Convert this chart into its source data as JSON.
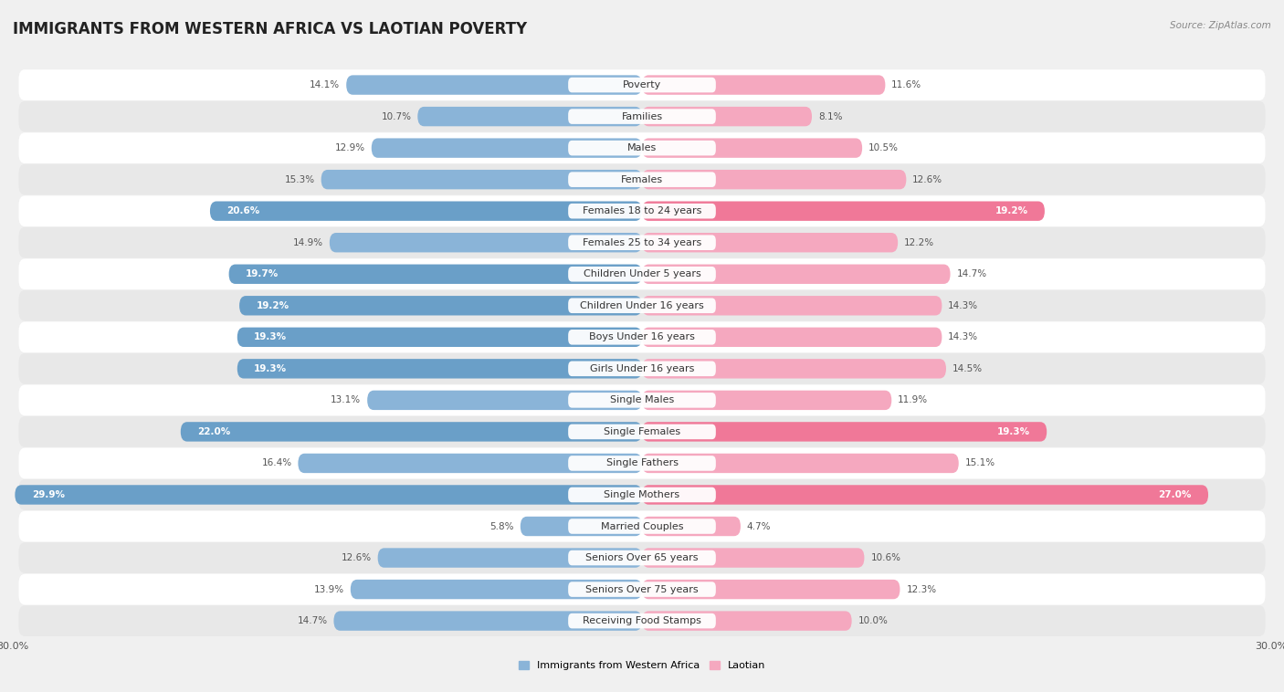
{
  "title": "IMMIGRANTS FROM WESTERN AFRICA VS LAOTIAN POVERTY",
  "source": "Source: ZipAtlas.com",
  "categories": [
    "Poverty",
    "Families",
    "Males",
    "Females",
    "Females 18 to 24 years",
    "Females 25 to 34 years",
    "Children Under 5 years",
    "Children Under 16 years",
    "Boys Under 16 years",
    "Girls Under 16 years",
    "Single Males",
    "Single Females",
    "Single Fathers",
    "Single Mothers",
    "Married Couples",
    "Seniors Over 65 years",
    "Seniors Over 75 years",
    "Receiving Food Stamps"
  ],
  "left_values": [
    14.1,
    10.7,
    12.9,
    15.3,
    20.6,
    14.9,
    19.7,
    19.2,
    19.3,
    19.3,
    13.1,
    22.0,
    16.4,
    29.9,
    5.8,
    12.6,
    13.9,
    14.7
  ],
  "right_values": [
    11.6,
    8.1,
    10.5,
    12.6,
    19.2,
    12.2,
    14.7,
    14.3,
    14.3,
    14.5,
    11.9,
    19.3,
    15.1,
    27.0,
    4.7,
    10.6,
    12.3,
    10.0
  ],
  "left_color_normal": "#8ab4d8",
  "left_color_dark": "#6a9fc8",
  "right_color_normal": "#f5a8bf",
  "right_color_dark": "#f07898",
  "xlim": 30.0,
  "bg_color": "#f0f0f0",
  "row_white_color": "#ffffff",
  "row_gray_color": "#e8e8e8",
  "legend_left": "Immigrants from Western Africa",
  "legend_right": "Laotian",
  "title_fontsize": 12,
  "label_fontsize": 8,
  "value_fontsize": 7.5,
  "axis_fontsize": 8,
  "dark_threshold": 18.5
}
